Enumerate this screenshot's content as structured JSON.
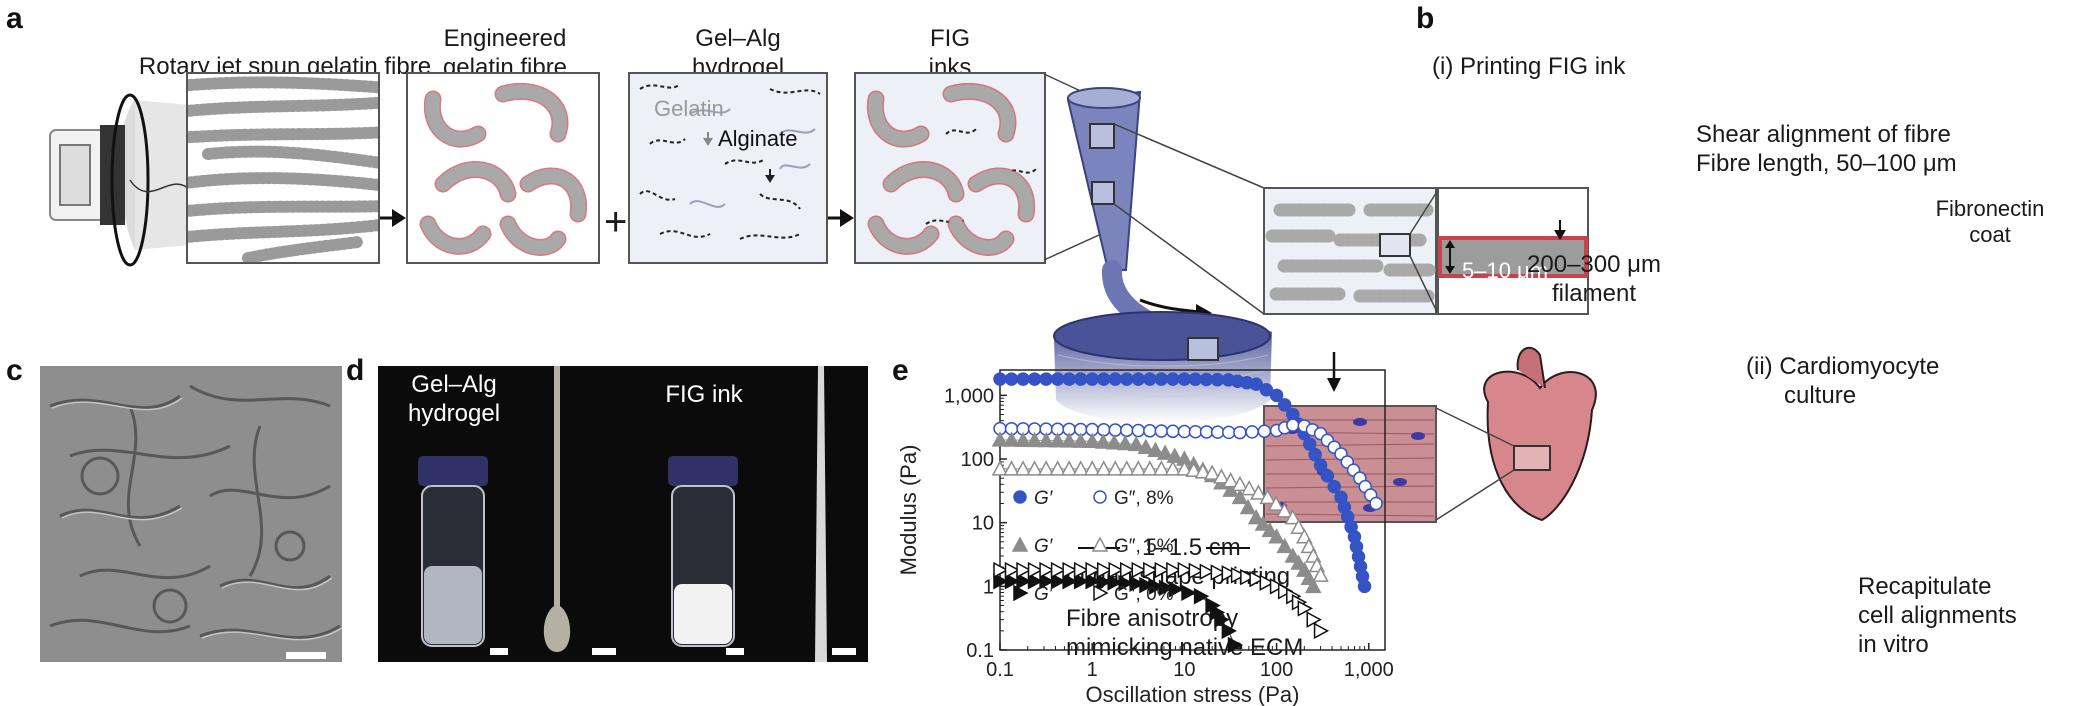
{
  "panel_labels": {
    "a": "a",
    "b": "b",
    "c": "c",
    "d": "d",
    "e": "e"
  },
  "panel_a": {
    "step1_title": "Rotary jet spun gelatin fibre",
    "step2_title_line1": "Engineered",
    "step2_title_line2": "gelatin fibre",
    "step3_title_line1": "Gel–Alg",
    "step3_title_line2": "hydrogel",
    "step3_gelatin_label": "Gelatin",
    "step3_alginate_label": "Alginate",
    "step4_title_line1": "FIG",
    "step4_title_line2": "inks",
    "plus_sign": "+"
  },
  "panel_b": {
    "printing_title": "(i) Printing FIG ink",
    "shear_line1": "Shear alignment of fibre",
    "shear_line2": "Fibre length, 50–100 μm",
    "fibronectin_line1": "Fibronectin",
    "fibronectin_line2": "coat",
    "fibre_diameter": "5–10 μm",
    "filament_line1": "200–300 μm",
    "filament_line2": "filament",
    "culture_line1": "(ii) Cardiomyocyte",
    "culture_line2": "culture",
    "scale_text": "1–1.5 cm",
    "organ_shape": "Organ shape printing",
    "anisotropy_line1": "Fibre anisotropy",
    "anisotropy_line2": "mimicking native ECM",
    "recap_line1": "Recapitulate",
    "recap_line2": "cell alignments",
    "recap_line3": "in vitro"
  },
  "panel_d": {
    "left_line1": "Gel–Alg",
    "left_line2": "hydrogel",
    "right_label": "FIG ink"
  },
  "colors": {
    "blue": "#3553c4",
    "gray": "#8c8c8c",
    "black": "#111111",
    "fibre_red": "#c8434b",
    "ink_blue": "#5b66a8"
  },
  "chart_data": {
    "type": "scatter",
    "xlabel": "Oscillation stress (Pa)",
    "ylabel": "Modulus (Pa)",
    "xscale": "log",
    "yscale": "log",
    "xlim": [
      0.1,
      1500
    ],
    "ylim": [
      0.1,
      2500
    ],
    "xticks": [
      "0.1",
      "1",
      "10",
      "100",
      "1,000"
    ],
    "yticks": [
      "0.1",
      "1",
      "10",
      "100",
      "1,000"
    ],
    "legend": [
      {
        "text": "G′   G″, 8%",
        "color": "#3553c4",
        "marker_filled": "circle",
        "marker_open": "circle"
      },
      {
        "text": "G′   G″, 5%",
        "color": "#8c8c8c",
        "marker_filled": "triangle-up",
        "marker_open": "triangle-up"
      },
      {
        "text": "G′   G″, 0%",
        "color": "#111111",
        "marker_filled": "triangle-right",
        "marker_open": "triangle-right"
      }
    ],
    "series": [
      {
        "name": "G′, 8%",
        "marker": "circle",
        "filled": true,
        "color": "#3553c4",
        "x": [
          0.1,
          1,
          10,
          30,
          60,
          100,
          150,
          200,
          300,
          500,
          700,
          900
        ],
        "y": [
          1800,
          1800,
          1800,
          1750,
          1500,
          1000,
          500,
          250,
          80,
          25,
          6,
          1
        ]
      },
      {
        "name": "G″, 8%",
        "marker": "circle",
        "filled": false,
        "color": "#3553c4",
        "x": [
          0.1,
          1,
          10,
          40,
          100,
          150,
          200,
          300,
          500,
          800,
          1200
        ],
        "y": [
          300,
          290,
          270,
          260,
          280,
          340,
          330,
          250,
          120,
          50,
          20
        ]
      },
      {
        "name": "G′, 5%",
        "marker": "triangle-up",
        "filled": true,
        "color": "#8c8c8c",
        "x": [
          0.1,
          1,
          3,
          10,
          20,
          40,
          60,
          100,
          150,
          200,
          250
        ],
        "y": [
          200,
          190,
          170,
          100,
          55,
          25,
          12,
          6,
          3,
          1.8,
          1
        ]
      },
      {
        "name": "G″, 5%",
        "marker": "triangle-up",
        "filled": false,
        "color": "#8c8c8c",
        "x": [
          0.1,
          1,
          10,
          20,
          40,
          80,
          150,
          200,
          250,
          300
        ],
        "y": [
          70,
          70,
          70,
          60,
          40,
          25,
          12,
          6,
          3,
          1.5
        ]
      },
      {
        "name": "G′, 0%",
        "marker": "triangle-right",
        "filled": true,
        "color": "#111111",
        "x": [
          0.1,
          1,
          3,
          8,
          15,
          20,
          25,
          30,
          35
        ],
        "y": [
          1.2,
          1.2,
          1.1,
          0.9,
          0.7,
          0.5,
          0.3,
          0.2,
          0.12
        ]
      },
      {
        "name": "G″, 0%",
        "marker": "triangle-right",
        "filled": false,
        "color": "#111111",
        "x": [
          0.1,
          1,
          10,
          30,
          60,
          100,
          150,
          200,
          250,
          300
        ],
        "y": [
          1.8,
          1.8,
          1.8,
          1.6,
          1.3,
          1.0,
          0.7,
          0.45,
          0.3,
          0.2
        ]
      }
    ]
  }
}
